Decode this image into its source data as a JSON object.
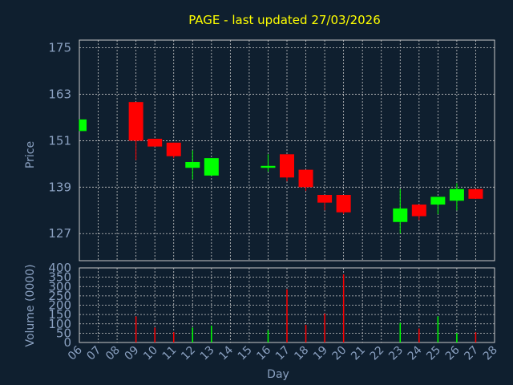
{
  "chart_data": [
    {
      "type": "candlestick",
      "title": "PAGE - last updated 27/03/2026",
      "ylabel": "Price",
      "ylim": [
        120,
        177
      ],
      "yticks": [
        127,
        139,
        151,
        163,
        175
      ],
      "grid": true,
      "categories": [
        "06",
        "07",
        "08",
        "09",
        "10",
        "11",
        "12",
        "13",
        "14",
        "15",
        "16",
        "17",
        "18",
        "19",
        "20",
        "21",
        "22",
        "23",
        "24",
        "25",
        "26",
        "27",
        "28"
      ],
      "candles": [
        {
          "day": "06",
          "open": 153.5,
          "close": 156.5,
          "high": 156.5,
          "low": 153.5
        },
        {
          "day": "09",
          "open": 161,
          "close": 151,
          "high": 161,
          "low": 146
        },
        {
          "day": "10",
          "open": 151.5,
          "close": 149.5,
          "high": 151.5,
          "low": 149.5
        },
        {
          "day": "11",
          "open": 150.5,
          "close": 147,
          "high": 150.5,
          "low": 146.5
        },
        {
          "day": "12",
          "open": 144,
          "close": 145.5,
          "high": 148.5,
          "low": 141
        },
        {
          "day": "13",
          "open": 142,
          "close": 146.5,
          "high": 146.5,
          "low": 142
        },
        {
          "day": "16",
          "open": 144,
          "close": 144.5,
          "high": 147.5,
          "low": 143
        },
        {
          "day": "17",
          "open": 147.5,
          "close": 141.5,
          "high": 147.5,
          "low": 140.5
        },
        {
          "day": "18",
          "open": 143.5,
          "close": 139,
          "high": 143.5,
          "low": 138
        },
        {
          "day": "19",
          "open": 137,
          "close": 135,
          "high": 137,
          "low": 133
        },
        {
          "day": "20",
          "open": 137,
          "close": 132.5,
          "high": 137,
          "low": 132
        },
        {
          "day": "23",
          "open": 130,
          "close": 133.5,
          "high": 138.5,
          "low": 127
        },
        {
          "day": "24",
          "open": 134.5,
          "close": 131.5,
          "high": 134.5,
          "low": 130.5
        },
        {
          "day": "25",
          "open": 134.5,
          "close": 136.5,
          "high": 136.5,
          "low": 132
        },
        {
          "day": "26",
          "open": 135.5,
          "close": 138.5,
          "high": 140,
          "low": 133
        },
        {
          "day": "27",
          "open": 138.5,
          "close": 136,
          "high": 138.5,
          "low": 136
        }
      ]
    },
    {
      "type": "bar",
      "ylabel": "Volume (0000)",
      "xlabel": "Day",
      "ylim": [
        0,
        400
      ],
      "yticks": [
        0,
        50,
        100,
        150,
        200,
        250,
        300,
        350,
        400
      ],
      "grid": true,
      "categories": [
        "06",
        "07",
        "08",
        "09",
        "10",
        "11",
        "12",
        "13",
        "14",
        "15",
        "16",
        "17",
        "18",
        "19",
        "20",
        "21",
        "22",
        "23",
        "24",
        "25",
        "26",
        "27",
        "28"
      ],
      "bars": [
        {
          "day": "09",
          "value": 140,
          "direction": "down"
        },
        {
          "day": "10",
          "value": 80,
          "direction": "down"
        },
        {
          "day": "11",
          "value": 55,
          "direction": "down"
        },
        {
          "day": "12",
          "value": 80,
          "direction": "up"
        },
        {
          "day": "13",
          "value": 90,
          "direction": "up"
        },
        {
          "day": "16",
          "value": 65,
          "direction": "up"
        },
        {
          "day": "17",
          "value": 285,
          "direction": "down"
        },
        {
          "day": "18",
          "value": 95,
          "direction": "down"
        },
        {
          "day": "19",
          "value": 155,
          "direction": "down"
        },
        {
          "day": "20",
          "value": 365,
          "direction": "down"
        },
        {
          "day": "23",
          "value": 105,
          "direction": "up"
        },
        {
          "day": "24",
          "value": 75,
          "direction": "down"
        },
        {
          "day": "25",
          "value": 140,
          "direction": "up"
        },
        {
          "day": "26",
          "value": 50,
          "direction": "up"
        },
        {
          "day": "27",
          "value": 55,
          "direction": "down"
        }
      ]
    }
  ],
  "colors": {
    "background": "#0f1f2f",
    "axis_text": "#8aa0c0",
    "title": "#ffff00",
    "grid": "#c8c8c8",
    "up": "#00ff00",
    "down": "#ff0000"
  }
}
